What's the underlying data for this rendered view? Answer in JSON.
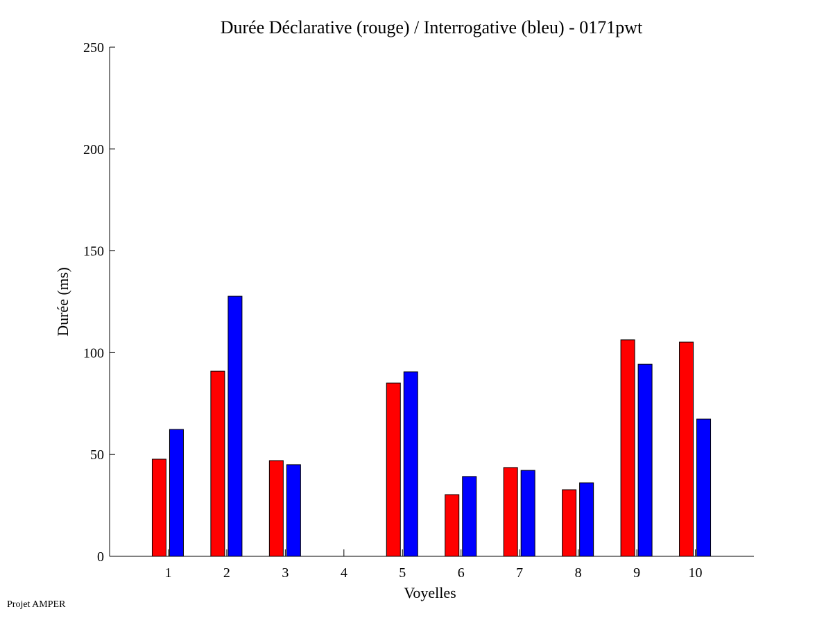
{
  "chart_data": {
    "type": "bar",
    "title": "Durée Déclarative (rouge) / Interrogative (bleu) - 0171pwt",
    "xlabel": "Voyelles",
    "ylabel": "Durée (ms)",
    "categories": [
      "1",
      "2",
      "3",
      "4",
      "5",
      "6",
      "7",
      "8",
      "9",
      "10"
    ],
    "xlim": [
      0,
      11
    ],
    "ylim": [
      0,
      250
    ],
    "yticks": [
      0,
      50,
      100,
      150,
      200,
      250
    ],
    "grid": false,
    "series": [
      {
        "color": "#ff0000",
        "values": [
          47.7,
          90.9,
          47.0,
          0,
          85.1,
          30.3,
          43.6,
          32.7,
          106.3,
          105.2
        ]
      },
      {
        "color": "#0000ff",
        "values": [
          62.3,
          127.7,
          45.0,
          0,
          90.6,
          39.2,
          42.2,
          36.1,
          94.3,
          67.4
        ]
      }
    ]
  },
  "footer": "Projet AMPER"
}
